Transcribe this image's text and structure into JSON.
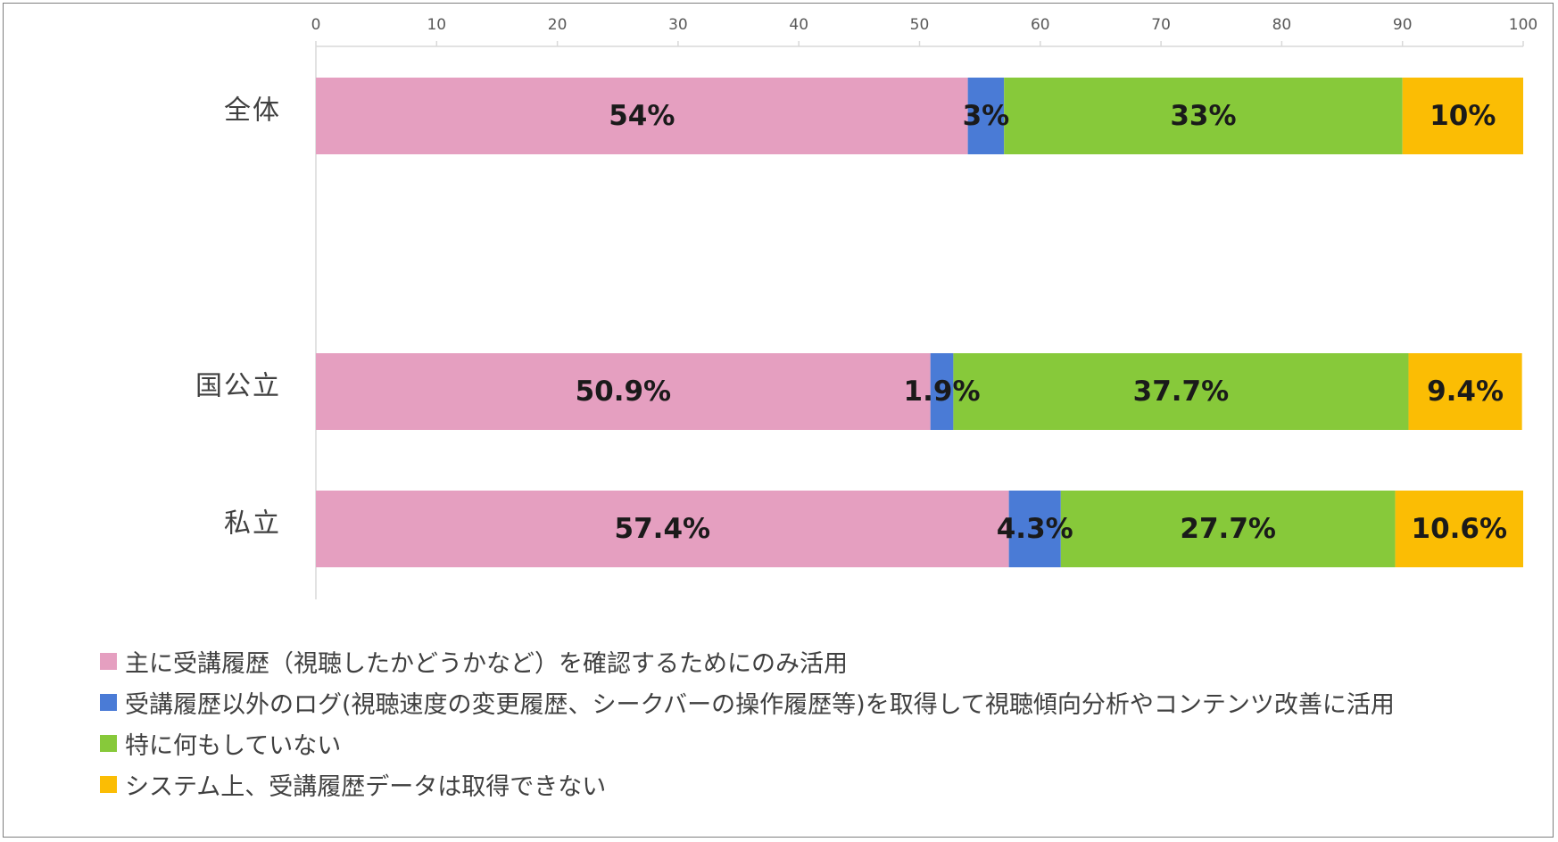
{
  "chart_data": {
    "type": "bar",
    "orientation": "horizontal",
    "stacked": true,
    "xlim": [
      0,
      100
    ],
    "x_ticks": [
      0,
      10,
      20,
      30,
      40,
      50,
      60,
      70,
      80,
      90,
      100
    ],
    "x_tick_labels": [
      "0",
      "10",
      "20",
      "30",
      "40",
      "50",
      "60",
      "70",
      "80",
      "90",
      "100"
    ],
    "axis_position": "top",
    "categories": [
      "全体",
      "国公立",
      "私立"
    ],
    "series": [
      {
        "name": "主に受講履歴（視聴したかどうかなど）を確認するためにのみ活用",
        "color": "#e59fc0",
        "values": [
          54,
          50.9,
          57.4
        ],
        "labels": [
          "54%",
          "50.9%",
          "57.4%"
        ]
      },
      {
        "name": "受講履歴以外のログ(視聴速度の変更履歴、シークバーの操作履歴等)を取得して視聴傾向分析やコンテンツ改善に活用",
        "color": "#4a7bd6",
        "values": [
          3,
          1.9,
          4.3
        ],
        "labels": [
          "3%",
          "1.9%",
          "4.3%"
        ]
      },
      {
        "name": "特に何もしていない",
        "color": "#87c93a",
        "values": [
          33,
          37.7,
          27.7
        ],
        "labels": [
          "33%",
          "37.7%",
          "27.7%"
        ]
      },
      {
        "name": "システム上、受講履歴データは取得できない",
        "color": "#fbbd04",
        "values": [
          10,
          9.4,
          10.6
        ],
        "labels": [
          "10%",
          "9.4%",
          "10.6%"
        ]
      }
    ],
    "legend_position": "bottom-left",
    "grid": false
  }
}
